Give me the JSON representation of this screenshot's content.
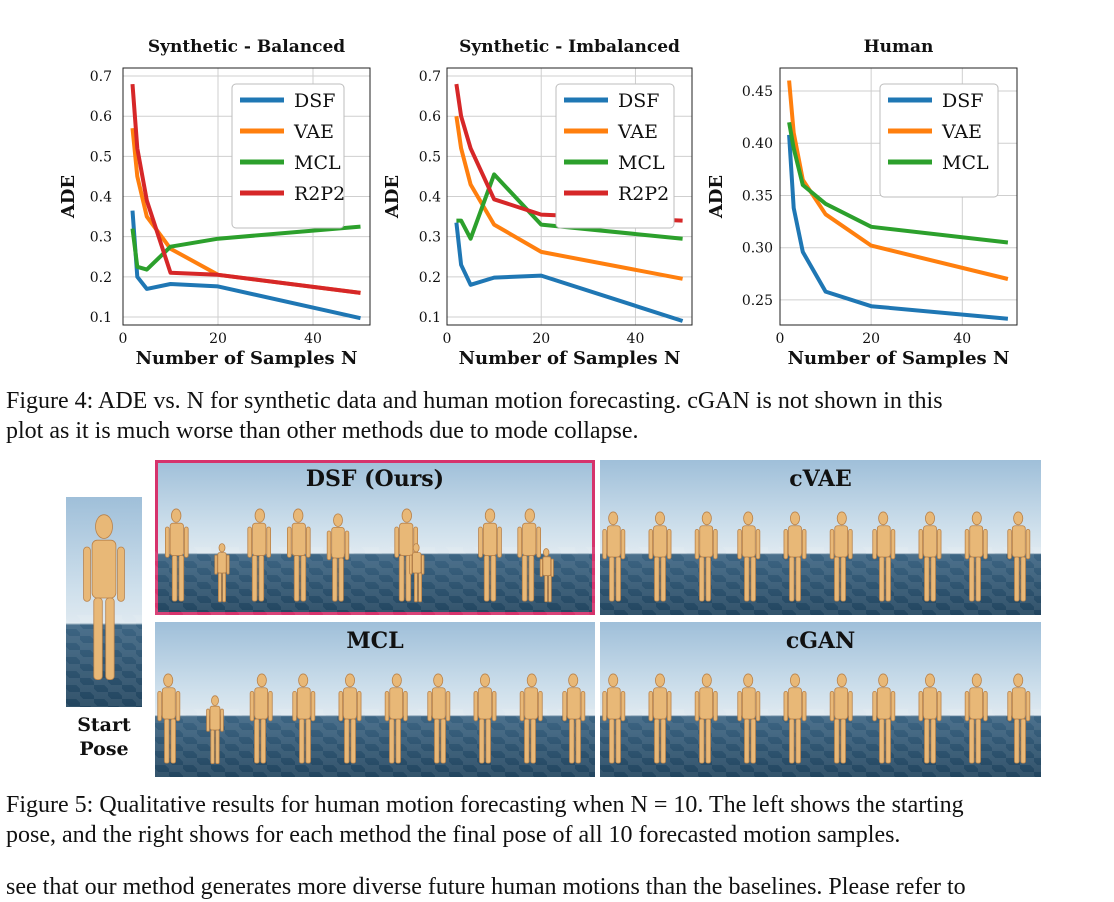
{
  "chart_data": [
    {
      "type": "line",
      "title": "Synthetic - Balanced",
      "xlabel": "Number of Samples N",
      "ylabel": "ADE",
      "xlim": [
        0,
        52
      ],
      "ylim": [
        0.08,
        0.72
      ],
      "xticks": [
        0,
        20,
        40
      ],
      "yticks": [
        0.1,
        0.2,
        0.3,
        0.4,
        0.5,
        0.6,
        0.7
      ],
      "ytick_labels": [
        "0.1",
        "0.2",
        "0.3",
        "0.4",
        "0.5",
        "0.6",
        "0.7"
      ],
      "legend_position": "top-right",
      "grid": true,
      "series": [
        {
          "name": "DSF",
          "color": "#1f77b4",
          "x": [
            2,
            3,
            5,
            10,
            20,
            50
          ],
          "y": [
            0.365,
            0.2,
            0.17,
            0.182,
            0.176,
            0.097
          ]
        },
        {
          "name": "VAE",
          "color": "#ff7f0e",
          "x": [
            2,
            3,
            5,
            10,
            20,
            50
          ],
          "y": [
            0.57,
            0.45,
            0.35,
            0.27,
            0.205,
            0.16
          ]
        },
        {
          "name": "MCL",
          "color": "#2ca02c",
          "x": [
            2,
            3,
            5,
            10,
            20,
            50
          ],
          "y": [
            0.32,
            0.225,
            0.218,
            0.275,
            0.295,
            0.325
          ]
        },
        {
          "name": "R2P2",
          "color": "#d62728",
          "x": [
            2,
            3,
            5,
            10,
            20,
            50
          ],
          "y": [
            0.68,
            0.52,
            0.39,
            0.21,
            0.205,
            0.16
          ]
        }
      ]
    },
    {
      "type": "line",
      "title": "Synthetic - Imbalanced",
      "xlabel": "Number of Samples N",
      "ylabel": "ADE",
      "xlim": [
        0,
        52
      ],
      "ylim": [
        0.08,
        0.72
      ],
      "xticks": [
        0,
        20,
        40
      ],
      "yticks": [
        0.1,
        0.2,
        0.3,
        0.4,
        0.5,
        0.6,
        0.7
      ],
      "ytick_labels": [
        "0.1",
        "0.2",
        "0.3",
        "0.4",
        "0.5",
        "0.6",
        "0.7"
      ],
      "legend_position": "top-right",
      "grid": true,
      "series": [
        {
          "name": "DSF",
          "color": "#1f77b4",
          "x": [
            2,
            3,
            5,
            10,
            20,
            50
          ],
          "y": [
            0.335,
            0.23,
            0.18,
            0.198,
            0.203,
            0.09
          ]
        },
        {
          "name": "VAE",
          "color": "#ff7f0e",
          "x": [
            2,
            3,
            5,
            10,
            20,
            50
          ],
          "y": [
            0.6,
            0.52,
            0.43,
            0.33,
            0.262,
            0.195
          ]
        },
        {
          "name": "MCL",
          "color": "#2ca02c",
          "x": [
            2,
            3,
            5,
            10,
            20,
            50
          ],
          "y": [
            0.34,
            0.34,
            0.295,
            0.455,
            0.33,
            0.295
          ]
        },
        {
          "name": "R2P2",
          "color": "#d62728",
          "x": [
            2,
            3,
            5,
            10,
            20,
            50
          ],
          "y": [
            0.68,
            0.6,
            0.52,
            0.393,
            0.355,
            0.34
          ]
        }
      ]
    },
    {
      "type": "line",
      "title": "Human",
      "xlabel": "Number of Samples N",
      "ylabel": "ADE",
      "xlim": [
        0,
        52
      ],
      "ylim": [
        0.226,
        0.472
      ],
      "xticks": [
        0,
        20,
        40
      ],
      "yticks": [
        0.25,
        0.3,
        0.35,
        0.4,
        0.45
      ],
      "ytick_labels": [
        "0.25",
        "0.30",
        "0.35",
        "0.40",
        "0.45"
      ],
      "legend_position": "top-right",
      "grid": true,
      "series": [
        {
          "name": "DSF",
          "color": "#1f77b4",
          "x": [
            2,
            3,
            5,
            10,
            20,
            50
          ],
          "y": [
            0.408,
            0.338,
            0.296,
            0.258,
            0.244,
            0.232
          ]
        },
        {
          "name": "VAE",
          "color": "#ff7f0e",
          "x": [
            2,
            3,
            5,
            10,
            20,
            50
          ],
          "y": [
            0.46,
            0.41,
            0.365,
            0.332,
            0.302,
            0.27
          ]
        },
        {
          "name": "MCL",
          "color": "#2ca02c",
          "x": [
            2,
            3,
            5,
            10,
            20,
            50
          ],
          "y": [
            0.42,
            0.395,
            0.36,
            0.342,
            0.32,
            0.305
          ]
        }
      ]
    }
  ],
  "captions": {
    "fig4_line1": "Figure 4: ADE vs. N for synthetic data and human motion forecasting. cGAN is not shown in this",
    "fig4_line2": "plot as it is much worse than other methods due to mode collapse.",
    "fig5_line1": "Figure 5: Qualitative results for human motion forecasting when N = 10. The left shows the starting",
    "fig5_line2": "pose, and the right shows for each method the final pose of all 10 forecasted motion samples.",
    "body_line": "see that our method generates more diverse future human motions than the baselines. Please refer to"
  },
  "figure5": {
    "start_label_1": "Start",
    "start_label_2": "Pose",
    "panels": [
      {
        "title": "DSF (Ours)",
        "highlight_color": "#d6336c"
      },
      {
        "title": "cVAE"
      },
      {
        "title": "MCL"
      },
      {
        "title": "cGAN"
      }
    ]
  }
}
